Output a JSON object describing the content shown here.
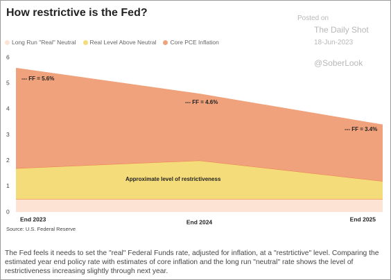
{
  "chart_data": {
    "type": "stacked-area",
    "title": "How restrictive is the Fed?",
    "watermark": [
      "Posted on",
      "The Daily Shot",
      "18-Jun-2023",
      "@SoberLook"
    ],
    "categories": [
      "End 2023",
      "End 2024",
      "End 2025"
    ],
    "series": [
      {
        "name": "Long Run \"Real\" Neutral",
        "color": "#fde3d3",
        "values": [
          0.5,
          0.5,
          0.5
        ]
      },
      {
        "name": "Real Level Above Neutral",
        "color": "#f5dc7a",
        "values": [
          1.2,
          1.5,
          0.7
        ]
      },
      {
        "name": "Core PCE Inflation",
        "color": "#f0a27c",
        "values": [
          3.9,
          2.6,
          2.2
        ]
      }
    ],
    "ylim": [
      0,
      6
    ],
    "yticks": [
      0,
      1,
      2,
      3,
      4,
      5,
      6
    ],
    "annotations": [
      "--- FF = 5.6%",
      "--- FF = 4.6%",
      "--- FF = 3.4%",
      "Approximate level of restrictiveness"
    ],
    "source": "Source: U.S. Federal Reserve",
    "caption": "The Fed feels it needs to set the \"real\" Federal Funds rate, adjusted for inflation, at a \"restrtictive\" level. Comparing the estimated year end policy rate with estimates of core inflation and the long run \"neutral\" rate shows the level of restrictiveness increasing slightly through next year."
  }
}
